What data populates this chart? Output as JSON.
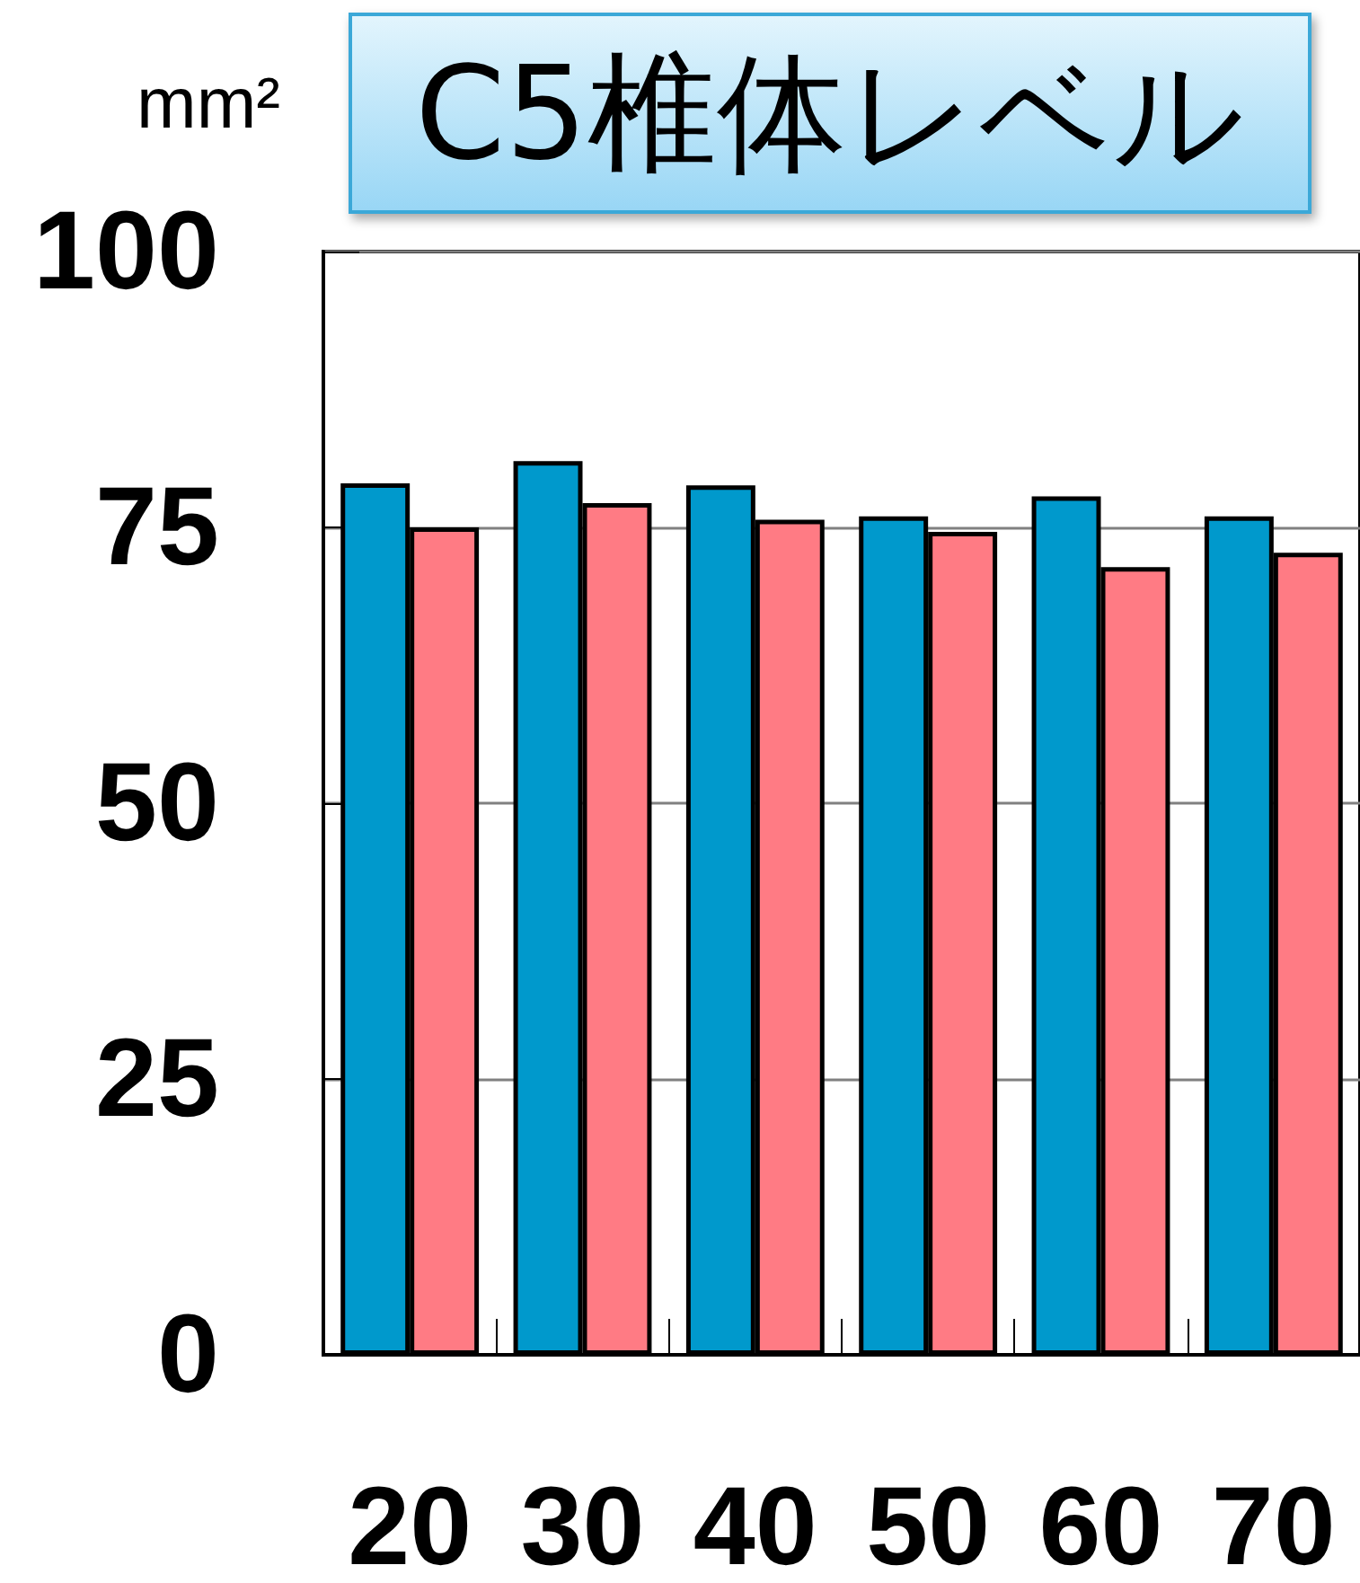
{
  "chart_data": {
    "type": "bar",
    "title": "C5椎体レベル",
    "ylabel": "mm²",
    "categories": [
      "20",
      "30",
      "40",
      "50",
      "60",
      "70"
    ],
    "series": [
      {
        "color": "#0099cc",
        "values": [
          79,
          81,
          78.8,
          76,
          77.8,
          76
        ]
      },
      {
        "color": "#ff7b84",
        "values": [
          75,
          77.2,
          75.7,
          74.6,
          71.4,
          72.7
        ]
      }
    ],
    "ylim": [
      0,
      100
    ],
    "yticks": [
      0,
      25,
      50,
      75,
      100
    ],
    "grid": "y"
  }
}
